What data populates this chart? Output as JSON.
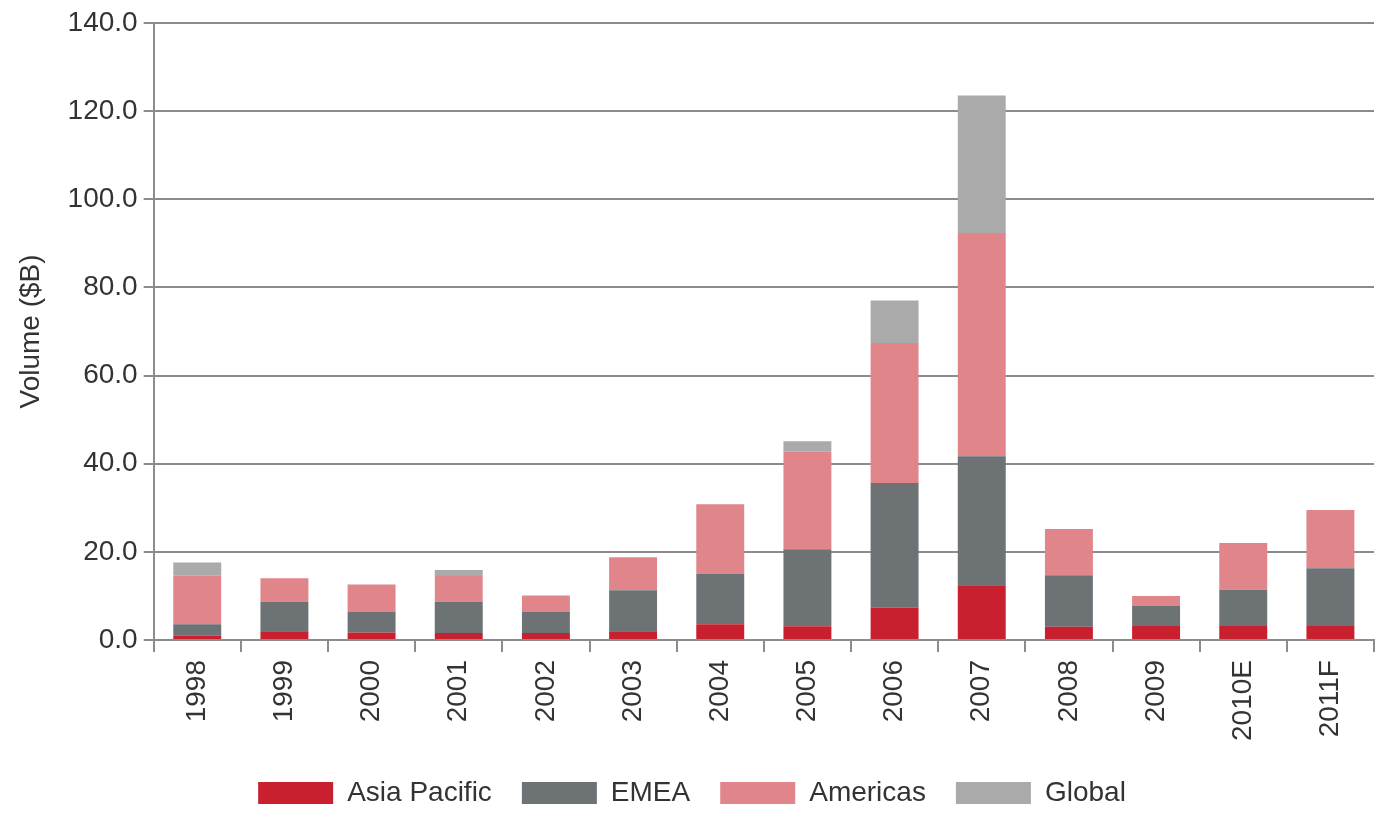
{
  "chart_data": {
    "type": "bar",
    "stacked": true,
    "ylabel": "Volume ($B)",
    "categories": [
      "1998",
      "1999",
      "2000",
      "2001",
      "2002",
      "2003",
      "2004",
      "2005",
      "2006",
      "2007",
      "2008",
      "2009",
      "2010E",
      "2011F"
    ],
    "series": [
      {
        "name": "Asia Pacific",
        "color": "#c8202f",
        "values": [
          1.0,
          2.0,
          1.7,
          1.6,
          1.6,
          2.0,
          3.6,
          3.1,
          7.3,
          12.4,
          3.0,
          3.2,
          3.2,
          3.2
        ]
      },
      {
        "name": "EMEA",
        "color": "#6d7275",
        "values": [
          2.6,
          6.7,
          4.8,
          7.1,
          4.9,
          9.3,
          11.4,
          17.5,
          28.3,
          29.3,
          11.7,
          4.5,
          8.2,
          13.1
        ]
      },
      {
        "name": "Americas",
        "color": "#e0868a",
        "values": [
          11.0,
          5.3,
          6.1,
          5.8,
          3.6,
          7.5,
          15.8,
          22.1,
          31.8,
          50.6,
          10.5,
          2.3,
          10.6,
          13.2
        ]
      },
      {
        "name": "Global",
        "color": "#aaaaaa",
        "values": [
          3.0,
          null,
          null,
          1.4,
          null,
          null,
          null,
          2.4,
          9.6,
          31.2,
          null,
          null,
          null,
          null
        ]
      }
    ],
    "ylim": [
      0,
      140
    ],
    "yticks": [
      {
        "value": 0,
        "label": "0.0"
      },
      {
        "value": 20,
        "label": "20.0"
      },
      {
        "value": 40,
        "label": "40.0"
      },
      {
        "value": 60,
        "label": "60.0"
      },
      {
        "value": 80,
        "label": "80.0"
      },
      {
        "value": 100,
        "label": "100.0"
      },
      {
        "value": 120,
        "label": "120.0"
      },
      {
        "value": 140,
        "label": "140.0"
      }
    ],
    "grid": "y",
    "legend": "bottom"
  }
}
